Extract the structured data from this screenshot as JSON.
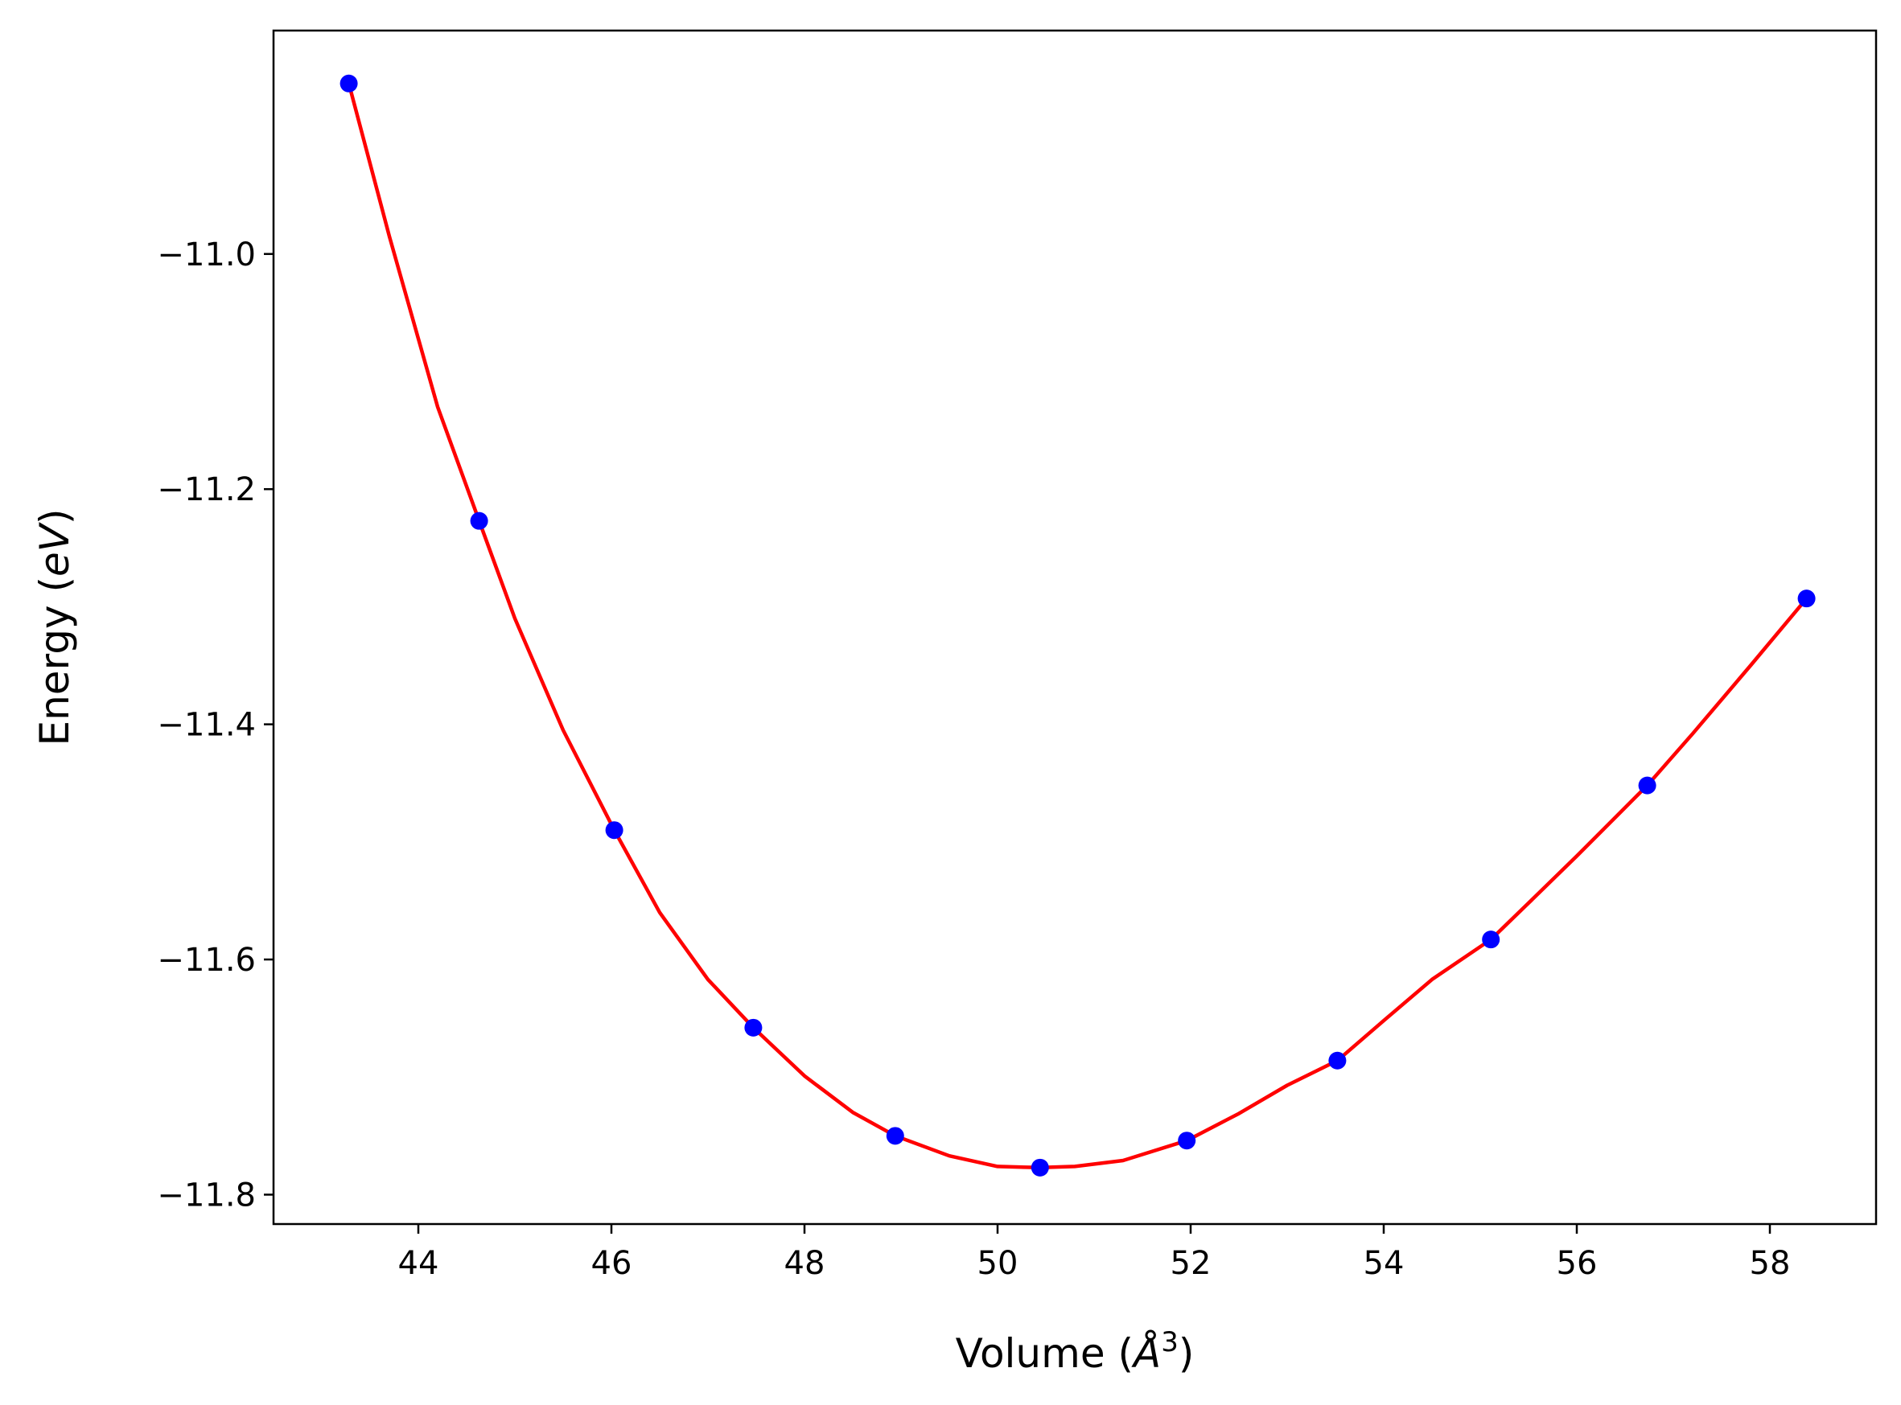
{
  "chart_data": {
    "type": "scatter",
    "xlabel": "Volume",
    "xlabel_unit_letter": "Å",
    "xlabel_unit_power": "3",
    "ylabel": "Energy",
    "ylabel_unit": "eV",
    "xlim": [
      42.5,
      59.1
    ],
    "ylim": [
      -11.825,
      -10.81
    ],
    "xticks": [
      44,
      46,
      48,
      50,
      52,
      54,
      56,
      58
    ],
    "xtick_labels": [
      "44",
      "46",
      "48",
      "50",
      "52",
      "54",
      "56",
      "58"
    ],
    "yticks": [
      -11.8,
      -11.6,
      -11.4,
      -11.2,
      -11.0
    ],
    "ytick_labels": [
      "−11.8",
      "−11.6",
      "−11.4",
      "−11.2",
      "−11.0"
    ],
    "grid": false,
    "series": [
      {
        "kind": "points",
        "color": "#0000ff",
        "x": [
          43.28,
          44.63,
          46.03,
          47.47,
          48.94,
          50.44,
          51.96,
          53.52,
          55.11,
          56.73,
          58.38
        ],
        "y": [
          -10.855,
          -11.227,
          -11.49,
          -11.658,
          -11.75,
          -11.777,
          -11.754,
          -11.686,
          -11.583,
          -11.452,
          -11.293
        ]
      },
      {
        "kind": "fit-curve",
        "color": "#ff0000",
        "x": [
          43.28,
          43.7,
          44.2,
          44.63,
          45.0,
          45.5,
          46.03,
          46.5,
          47.0,
          47.47,
          48.0,
          48.5,
          48.94,
          49.5,
          50.0,
          50.44,
          50.8,
          51.3,
          51.96,
          52.5,
          53.0,
          53.52,
          54.0,
          54.5,
          55.11,
          55.5,
          56.0,
          56.73,
          57.2,
          57.8,
          58.38
        ],
        "y": [
          -10.855,
          -10.985,
          -11.13,
          -11.227,
          -11.31,
          -11.405,
          -11.49,
          -11.56,
          -11.617,
          -11.658,
          -11.699,
          -11.73,
          -11.75,
          -11.767,
          -11.776,
          -11.777,
          -11.776,
          -11.771,
          -11.754,
          -11.731,
          -11.707,
          -11.686,
          -11.652,
          -11.617,
          -11.583,
          -11.552,
          -11.512,
          -11.452,
          -11.408,
          -11.35,
          -11.293
        ]
      }
    ]
  }
}
